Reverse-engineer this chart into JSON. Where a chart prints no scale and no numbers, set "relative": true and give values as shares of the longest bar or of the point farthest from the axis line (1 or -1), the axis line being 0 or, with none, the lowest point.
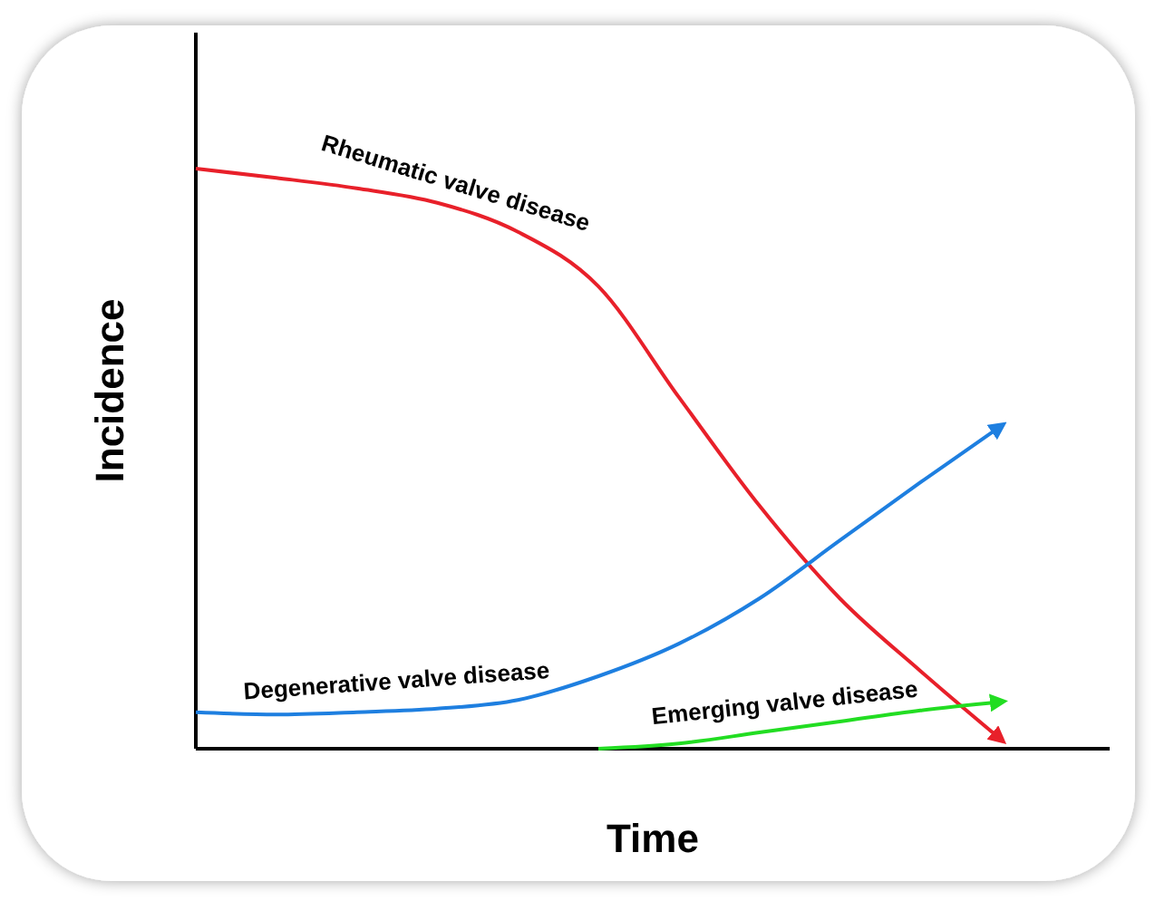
{
  "chart_data": {
    "type": "line",
    "xlabel": "Time",
    "ylabel": "Incidence",
    "relative": true,
    "categories": [
      null,
      null,
      null,
      null,
      null,
      null,
      null,
      null,
      null,
      null,
      null
    ],
    "series": [
      {
        "name": "Rheumatic valve disease",
        "color": "#e8202a",
        "values": [
          1,
          0.984,
          0.966,
          0.941,
          0.891,
          0.797,
          0.606,
          0.419,
          0.259,
          0.134,
          0.016
        ]
      },
      {
        "name": "Degenerative valve disease",
        "color": "#1e7fe0",
        "values": [
          0.063,
          0.059,
          0.063,
          0.069,
          0.084,
          0.125,
          0.181,
          0.259,
          0.359,
          0.459,
          0.556
        ]
      },
      {
        "name": "Emerging valve disease",
        "color": "#22dd22",
        "values": [
          null,
          null,
          null,
          null,
          null,
          0,
          0.009,
          0.028,
          0.047,
          0.066,
          0.081
        ]
      }
    ]
  }
}
